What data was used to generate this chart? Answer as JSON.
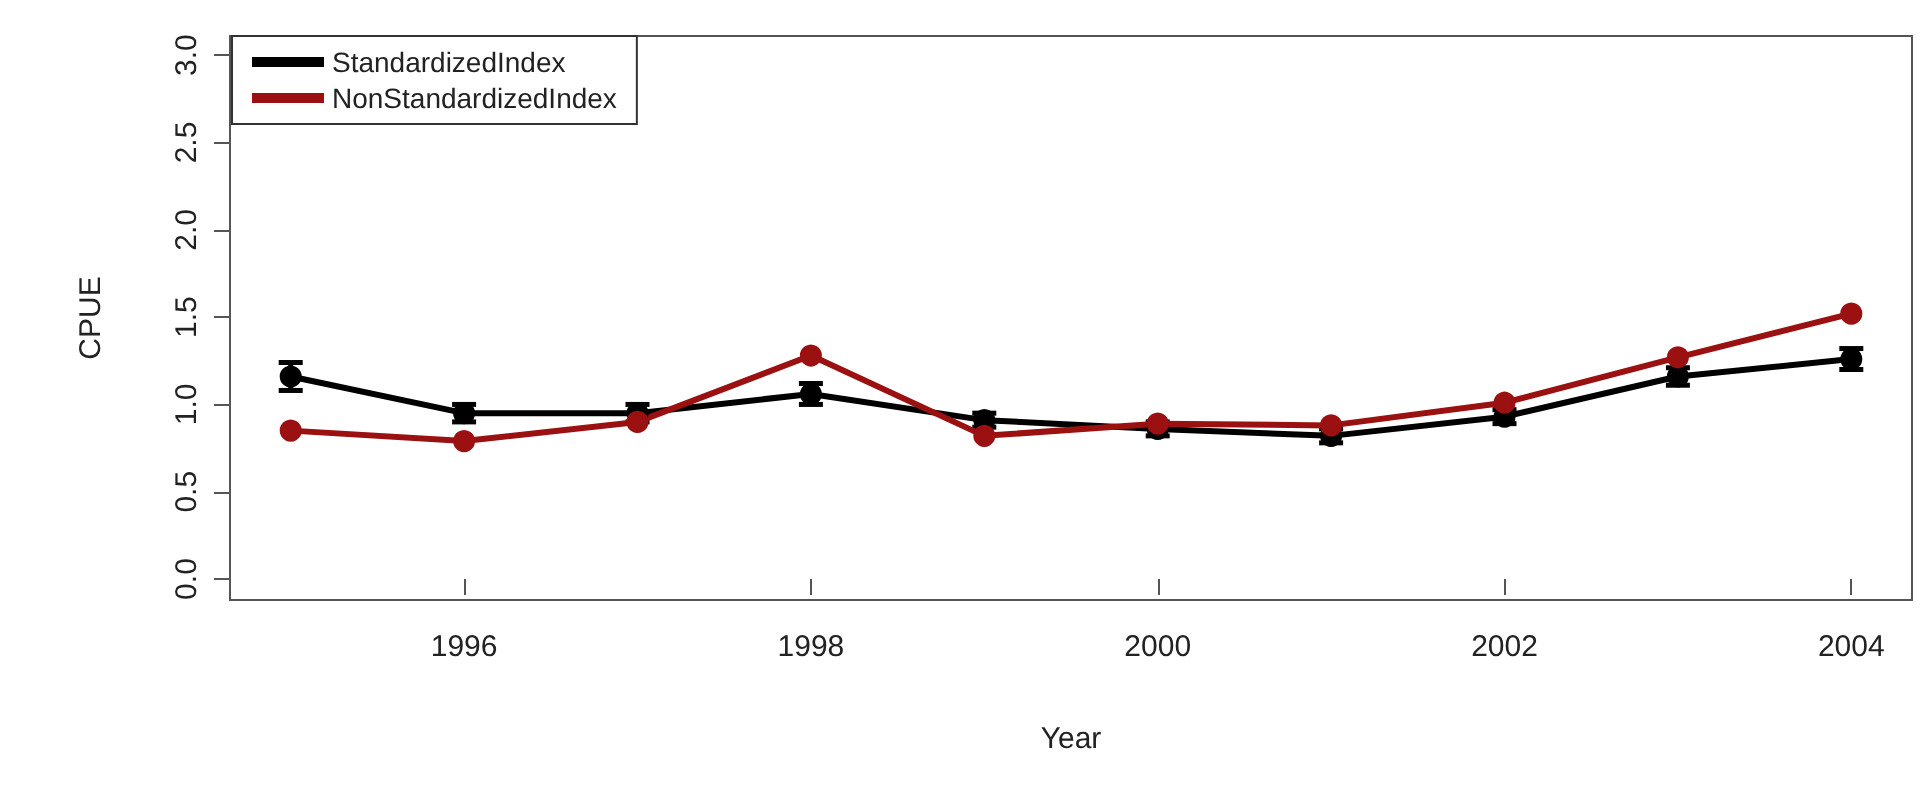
{
  "chart_data": {
    "type": "line",
    "xlabel": "Year",
    "ylabel": "CPUE",
    "x": [
      1995,
      1996,
      1997,
      1998,
      1999,
      2000,
      2001,
      2002,
      2003,
      2004
    ],
    "series": [
      {
        "name": "StandardizedIndex",
        "color": "#000000",
        "values": [
          1.16,
          0.95,
          0.95,
          1.06,
          0.91,
          0.86,
          0.82,
          0.93,
          1.16,
          1.26
        ],
        "errors": [
          0.08,
          0.05,
          0.05,
          0.06,
          0.04,
          0.04,
          0.04,
          0.04,
          0.05,
          0.06
        ]
      },
      {
        "name": "NonStandardizedIndex",
        "color": "#9b1010",
        "values": [
          0.85,
          0.79,
          0.9,
          1.28,
          0.82,
          0.89,
          0.88,
          1.01,
          1.27,
          1.52
        ]
      }
    ],
    "xlim": [
      1994.65,
      2004.35
    ],
    "ylim": [
      -0.12,
      3.11
    ],
    "xticks": [
      1996,
      1998,
      2000,
      2002,
      2004
    ],
    "yticks": [
      {
        "value": 0,
        "label": "0.0"
      },
      {
        "value": 0.5,
        "label": "0.5"
      },
      {
        "value": 1,
        "label": "1.0"
      },
      {
        "value": 1.5,
        "label": "1.5"
      },
      {
        "value": 2,
        "label": "2.0"
      },
      {
        "value": 2.5,
        "label": "2.5"
      },
      {
        "value": 3,
        "label": "3.0"
      }
    ],
    "grid": false,
    "legend": "top left",
    "marker": "circle",
    "line_style": "solid"
  }
}
